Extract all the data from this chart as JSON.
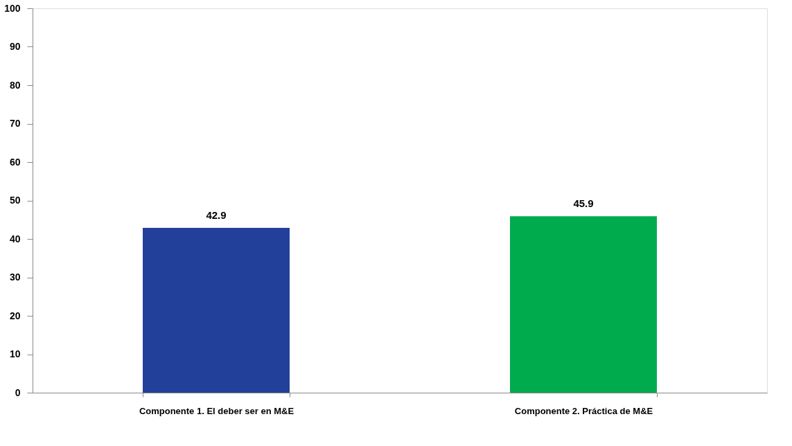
{
  "chart_data": {
    "type": "bar",
    "categories": [
      "Componente 1. El deber ser en M&E",
      "Componente 2. Práctica de M&E"
    ],
    "values": [
      42.9,
      45.9
    ],
    "colors": [
      "#22409a",
      "#00ab4e"
    ],
    "ylim": [
      0,
      100
    ],
    "yticks": [
      0,
      10,
      20,
      30,
      40,
      50,
      60,
      70,
      80,
      90,
      100
    ],
    "grid": false,
    "data_labels": true,
    "legend": false
  }
}
